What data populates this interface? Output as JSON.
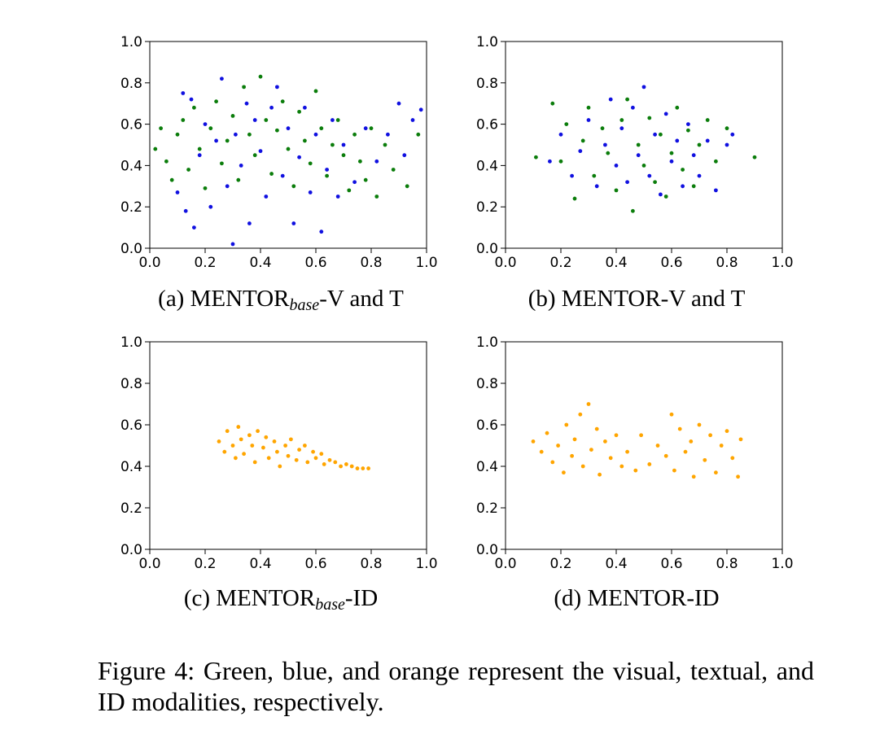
{
  "figure": {
    "caption": "Figure 4: Green, blue, and orange represent the visual, textual, and ID modalities, respectively."
  },
  "colors": {
    "visual": "#0b7d0b",
    "textual": "#1010e0",
    "id": "#ffa500"
  },
  "panels": [
    {
      "label_prefix": "(a) MENTOR",
      "label_sub": "base",
      "label_suffix": "-V and T"
    },
    {
      "label_prefix": "(b) MENTOR-V and T",
      "label_sub": "",
      "label_suffix": ""
    },
    {
      "label_prefix": "(c) MENTOR",
      "label_sub": "base",
      "label_suffix": "-ID"
    },
    {
      "label_prefix": "(d) MENTOR-ID",
      "label_sub": "",
      "label_suffix": ""
    }
  ],
  "chart_data": [
    {
      "type": "scatter",
      "xlim": [
        0,
        1
      ],
      "ylim": [
        0,
        1
      ],
      "xticks": [
        "0.0",
        "0.2",
        "0.4",
        "0.6",
        "0.8",
        "1.0"
      ],
      "yticks": [
        "0.0",
        "0.2",
        "0.4",
        "0.6",
        "0.8",
        "1.0"
      ],
      "series": [
        {
          "color": "#0b7d0b",
          "points": [
            [
              0.02,
              0.48
            ],
            [
              0.04,
              0.58
            ],
            [
              0.06,
              0.42
            ],
            [
              0.08,
              0.33
            ],
            [
              0.1,
              0.55
            ],
            [
              0.12,
              0.62
            ],
            [
              0.14,
              0.38
            ],
            [
              0.16,
              0.68
            ],
            [
              0.18,
              0.48
            ],
            [
              0.2,
              0.29
            ],
            [
              0.22,
              0.58
            ],
            [
              0.24,
              0.71
            ],
            [
              0.26,
              0.41
            ],
            [
              0.28,
              0.52
            ],
            [
              0.3,
              0.64
            ],
            [
              0.32,
              0.33
            ],
            [
              0.34,
              0.78
            ],
            [
              0.36,
              0.55
            ],
            [
              0.38,
              0.45
            ],
            [
              0.4,
              0.83
            ],
            [
              0.42,
              0.62
            ],
            [
              0.44,
              0.36
            ],
            [
              0.46,
              0.57
            ],
            [
              0.48,
              0.71
            ],
            [
              0.5,
              0.48
            ],
            [
              0.52,
              0.3
            ],
            [
              0.54,
              0.66
            ],
            [
              0.56,
              0.52
            ],
            [
              0.58,
              0.41
            ],
            [
              0.6,
              0.76
            ],
            [
              0.62,
              0.58
            ],
            [
              0.64,
              0.35
            ],
            [
              0.66,
              0.5
            ],
            [
              0.68,
              0.62
            ],
            [
              0.7,
              0.45
            ],
            [
              0.72,
              0.28
            ],
            [
              0.74,
              0.55
            ],
            [
              0.76,
              0.42
            ],
            [
              0.78,
              0.33
            ],
            [
              0.8,
              0.58
            ],
            [
              0.82,
              0.25
            ],
            [
              0.85,
              0.5
            ],
            [
              0.88,
              0.38
            ],
            [
              0.93,
              0.3
            ],
            [
              0.97,
              0.55
            ]
          ]
        },
        {
          "color": "#1010e0",
          "points": [
            [
              0.1,
              0.27
            ],
            [
              0.12,
              0.75
            ],
            [
              0.13,
              0.18
            ],
            [
              0.15,
              0.72
            ],
            [
              0.16,
              0.1
            ],
            [
              0.18,
              0.45
            ],
            [
              0.2,
              0.6
            ],
            [
              0.22,
              0.2
            ],
            [
              0.24,
              0.52
            ],
            [
              0.26,
              0.82
            ],
            [
              0.28,
              0.3
            ],
            [
              0.3,
              0.02
            ],
            [
              0.31,
              0.55
            ],
            [
              0.33,
              0.4
            ],
            [
              0.35,
              0.7
            ],
            [
              0.36,
              0.12
            ],
            [
              0.38,
              0.62
            ],
            [
              0.4,
              0.47
            ],
            [
              0.42,
              0.25
            ],
            [
              0.44,
              0.68
            ],
            [
              0.46,
              0.78
            ],
            [
              0.48,
              0.35
            ],
            [
              0.5,
              0.58
            ],
            [
              0.52,
              0.12
            ],
            [
              0.54,
              0.44
            ],
            [
              0.56,
              0.68
            ],
            [
              0.58,
              0.27
            ],
            [
              0.6,
              0.55
            ],
            [
              0.62,
              0.08
            ],
            [
              0.64,
              0.38
            ],
            [
              0.66,
              0.62
            ],
            [
              0.68,
              0.25
            ],
            [
              0.7,
              0.5
            ],
            [
              0.74,
              0.32
            ],
            [
              0.78,
              0.58
            ],
            [
              0.82,
              0.42
            ],
            [
              0.86,
              0.55
            ],
            [
              0.9,
              0.7
            ],
            [
              0.92,
              0.45
            ],
            [
              0.95,
              0.62
            ],
            [
              0.98,
              0.67
            ]
          ]
        }
      ]
    },
    {
      "type": "scatter",
      "xlim": [
        0,
        1
      ],
      "ylim": [
        0,
        1
      ],
      "xticks": [
        "0.0",
        "0.2",
        "0.4",
        "0.6",
        "0.8",
        "1.0"
      ],
      "yticks": [
        "0.0",
        "0.2",
        "0.4",
        "0.6",
        "0.8",
        "1.0"
      ],
      "series": [
        {
          "color": "#0b7d0b",
          "points": [
            [
              0.11,
              0.44
            ],
            [
              0.17,
              0.7
            ],
            [
              0.2,
              0.42
            ],
            [
              0.22,
              0.6
            ],
            [
              0.25,
              0.24
            ],
            [
              0.28,
              0.52
            ],
            [
              0.3,
              0.68
            ],
            [
              0.32,
              0.35
            ],
            [
              0.35,
              0.58
            ],
            [
              0.37,
              0.46
            ],
            [
              0.4,
              0.28
            ],
            [
              0.42,
              0.62
            ],
            [
              0.44,
              0.72
            ],
            [
              0.46,
              0.18
            ],
            [
              0.48,
              0.5
            ],
            [
              0.5,
              0.4
            ],
            [
              0.52,
              0.63
            ],
            [
              0.54,
              0.32
            ],
            [
              0.56,
              0.55
            ],
            [
              0.58,
              0.25
            ],
            [
              0.6,
              0.46
            ],
            [
              0.62,
              0.68
            ],
            [
              0.64,
              0.38
            ],
            [
              0.66,
              0.57
            ],
            [
              0.68,
              0.3
            ],
            [
              0.7,
              0.5
            ],
            [
              0.73,
              0.62
            ],
            [
              0.76,
              0.42
            ],
            [
              0.8,
              0.58
            ],
            [
              0.9,
              0.44
            ]
          ]
        },
        {
          "color": "#1010e0",
          "points": [
            [
              0.16,
              0.42
            ],
            [
              0.2,
              0.55
            ],
            [
              0.24,
              0.35
            ],
            [
              0.27,
              0.47
            ],
            [
              0.3,
              0.62
            ],
            [
              0.33,
              0.3
            ],
            [
              0.36,
              0.5
            ],
            [
              0.38,
              0.72
            ],
            [
              0.4,
              0.4
            ],
            [
              0.42,
              0.58
            ],
            [
              0.44,
              0.32
            ],
            [
              0.46,
              0.68
            ],
            [
              0.48,
              0.45
            ],
            [
              0.5,
              0.78
            ],
            [
              0.52,
              0.35
            ],
            [
              0.54,
              0.55
            ],
            [
              0.56,
              0.26
            ],
            [
              0.58,
              0.65
            ],
            [
              0.6,
              0.42
            ],
            [
              0.62,
              0.52
            ],
            [
              0.64,
              0.3
            ],
            [
              0.66,
              0.6
            ],
            [
              0.68,
              0.45
            ],
            [
              0.7,
              0.35
            ],
            [
              0.73,
              0.52
            ],
            [
              0.76,
              0.28
            ],
            [
              0.8,
              0.5
            ],
            [
              0.82,
              0.55
            ]
          ]
        }
      ]
    },
    {
      "type": "scatter",
      "xlim": [
        0,
        1
      ],
      "ylim": [
        0,
        1
      ],
      "xticks": [
        "0.0",
        "0.2",
        "0.4",
        "0.6",
        "0.8",
        "1.0"
      ],
      "yticks": [
        "0.0",
        "0.2",
        "0.4",
        "0.6",
        "0.8",
        "1.0"
      ],
      "series": [
        {
          "color": "#ffa500",
          "points": [
            [
              0.25,
              0.52
            ],
            [
              0.27,
              0.47
            ],
            [
              0.28,
              0.57
            ],
            [
              0.3,
              0.5
            ],
            [
              0.31,
              0.44
            ],
            [
              0.32,
              0.59
            ],
            [
              0.33,
              0.53
            ],
            [
              0.34,
              0.46
            ],
            [
              0.36,
              0.55
            ],
            [
              0.37,
              0.5
            ],
            [
              0.38,
              0.42
            ],
            [
              0.39,
              0.57
            ],
            [
              0.41,
              0.49
            ],
            [
              0.42,
              0.54
            ],
            [
              0.43,
              0.44
            ],
            [
              0.45,
              0.52
            ],
            [
              0.46,
              0.47
            ],
            [
              0.47,
              0.4
            ],
            [
              0.49,
              0.5
            ],
            [
              0.5,
              0.45
            ],
            [
              0.51,
              0.53
            ],
            [
              0.53,
              0.43
            ],
            [
              0.54,
              0.48
            ],
            [
              0.56,
              0.5
            ],
            [
              0.57,
              0.42
            ],
            [
              0.59,
              0.47
            ],
            [
              0.6,
              0.44
            ],
            [
              0.62,
              0.46
            ],
            [
              0.63,
              0.41
            ],
            [
              0.65,
              0.43
            ],
            [
              0.67,
              0.42
            ],
            [
              0.69,
              0.4
            ],
            [
              0.71,
              0.41
            ],
            [
              0.73,
              0.4
            ],
            [
              0.75,
              0.39
            ],
            [
              0.77,
              0.39
            ],
            [
              0.79,
              0.39
            ]
          ]
        }
      ]
    },
    {
      "type": "scatter",
      "xlim": [
        0,
        1
      ],
      "ylim": [
        0,
        1
      ],
      "xticks": [
        "0.0",
        "0.2",
        "0.4",
        "0.6",
        "0.8",
        "1.0"
      ],
      "yticks": [
        "0.0",
        "0.2",
        "0.4",
        "0.6",
        "0.8",
        "1.0"
      ],
      "series": [
        {
          "color": "#ffa500",
          "points": [
            [
              0.1,
              0.52
            ],
            [
              0.13,
              0.47
            ],
            [
              0.15,
              0.56
            ],
            [
              0.17,
              0.42
            ],
            [
              0.19,
              0.5
            ],
            [
              0.21,
              0.37
            ],
            [
              0.22,
              0.6
            ],
            [
              0.24,
              0.45
            ],
            [
              0.25,
              0.53
            ],
            [
              0.27,
              0.65
            ],
            [
              0.28,
              0.4
            ],
            [
              0.3,
              0.7
            ],
            [
              0.31,
              0.48
            ],
            [
              0.33,
              0.58
            ],
            [
              0.34,
              0.36
            ],
            [
              0.36,
              0.52
            ],
            [
              0.38,
              0.44
            ],
            [
              0.4,
              0.55
            ],
            [
              0.42,
              0.4
            ],
            [
              0.44,
              0.47
            ],
            [
              0.47,
              0.38
            ],
            [
              0.49,
              0.55
            ],
            [
              0.52,
              0.41
            ],
            [
              0.55,
              0.5
            ],
            [
              0.58,
              0.45
            ],
            [
              0.6,
              0.65
            ],
            [
              0.61,
              0.38
            ],
            [
              0.63,
              0.58
            ],
            [
              0.65,
              0.47
            ],
            [
              0.67,
              0.52
            ],
            [
              0.68,
              0.35
            ],
            [
              0.7,
              0.6
            ],
            [
              0.72,
              0.43
            ],
            [
              0.74,
              0.55
            ],
            [
              0.76,
              0.37
            ],
            [
              0.78,
              0.5
            ],
            [
              0.8,
              0.57
            ],
            [
              0.82,
              0.44
            ],
            [
              0.84,
              0.35
            ],
            [
              0.85,
              0.53
            ]
          ]
        }
      ]
    }
  ]
}
